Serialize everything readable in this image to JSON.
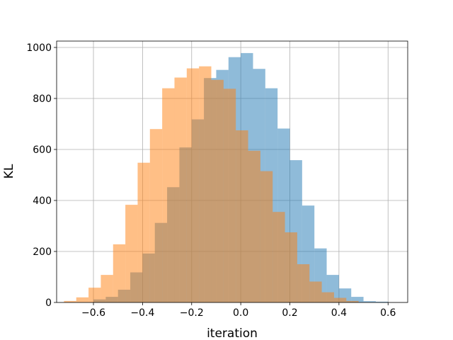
{
  "chart_data": {
    "type": "histogram",
    "xlabel": "iteration",
    "ylabel": "KL",
    "xlim": [
      -0.75,
      0.68
    ],
    "ylim": [
      0,
      1025
    ],
    "grid": true,
    "x_ticks": [
      -0.6,
      -0.4,
      -0.2,
      0.0,
      0.2,
      0.4,
      0.6
    ],
    "x_tick_labels": [
      "−0.6",
      "−0.4",
      "−0.2",
      "0.0",
      "0.2",
      "0.4",
      "0.6"
    ],
    "y_ticks": [
      0,
      200,
      400,
      600,
      800,
      1000
    ],
    "y_tick_labels": [
      "0",
      "200",
      "400",
      "600",
      "800",
      "1000"
    ],
    "series": [
      {
        "color": "#1f77b4",
        "alpha": 0.5,
        "bins": [
          [
            -0.6,
            -0.55,
            12
          ],
          [
            -0.55,
            -0.5,
            22
          ],
          [
            -0.5,
            -0.45,
            50
          ],
          [
            -0.45,
            -0.4,
            118
          ],
          [
            -0.4,
            -0.35,
            192
          ],
          [
            -0.35,
            -0.3,
            312
          ],
          [
            -0.3,
            -0.25,
            452
          ],
          [
            -0.25,
            -0.2,
            608
          ],
          [
            -0.2,
            -0.15,
            718
          ],
          [
            -0.15,
            -0.1,
            880
          ],
          [
            -0.1,
            -0.05,
            912
          ],
          [
            -0.05,
            0.0,
            962
          ],
          [
            0.0,
            0.05,
            978
          ],
          [
            0.05,
            0.1,
            916
          ],
          [
            0.1,
            0.15,
            840
          ],
          [
            0.15,
            0.2,
            682
          ],
          [
            0.2,
            0.25,
            558
          ],
          [
            0.25,
            0.3,
            380
          ],
          [
            0.3,
            0.35,
            212
          ],
          [
            0.35,
            0.4,
            108
          ],
          [
            0.4,
            0.45,
            55
          ],
          [
            0.45,
            0.5,
            22
          ],
          [
            0.5,
            0.55,
            5
          ],
          [
            0.55,
            0.6,
            3
          ]
        ]
      },
      {
        "color": "#ff7f0e",
        "alpha": 0.5,
        "bins": [
          [
            -0.72,
            -0.67,
            6
          ],
          [
            -0.67,
            -0.62,
            20
          ],
          [
            -0.62,
            -0.57,
            58
          ],
          [
            -0.57,
            -0.52,
            108
          ],
          [
            -0.52,
            -0.47,
            228
          ],
          [
            -0.47,
            -0.42,
            383
          ],
          [
            -0.42,
            -0.37,
            548
          ],
          [
            -0.37,
            -0.32,
            680
          ],
          [
            -0.32,
            -0.27,
            840
          ],
          [
            -0.27,
            -0.22,
            882
          ],
          [
            -0.22,
            -0.17,
            918
          ],
          [
            -0.17,
            -0.12,
            926
          ],
          [
            -0.12,
            -0.07,
            873
          ],
          [
            -0.07,
            -0.02,
            838
          ],
          [
            -0.02,
            0.03,
            675
          ],
          [
            0.03,
            0.08,
            595
          ],
          [
            0.08,
            0.13,
            515
          ],
          [
            0.13,
            0.18,
            355
          ],
          [
            0.18,
            0.23,
            275
          ],
          [
            0.23,
            0.28,
            150
          ],
          [
            0.28,
            0.33,
            82
          ],
          [
            0.33,
            0.38,
            40
          ],
          [
            0.38,
            0.43,
            18
          ],
          [
            0.43,
            0.48,
            6
          ]
        ]
      }
    ]
  }
}
